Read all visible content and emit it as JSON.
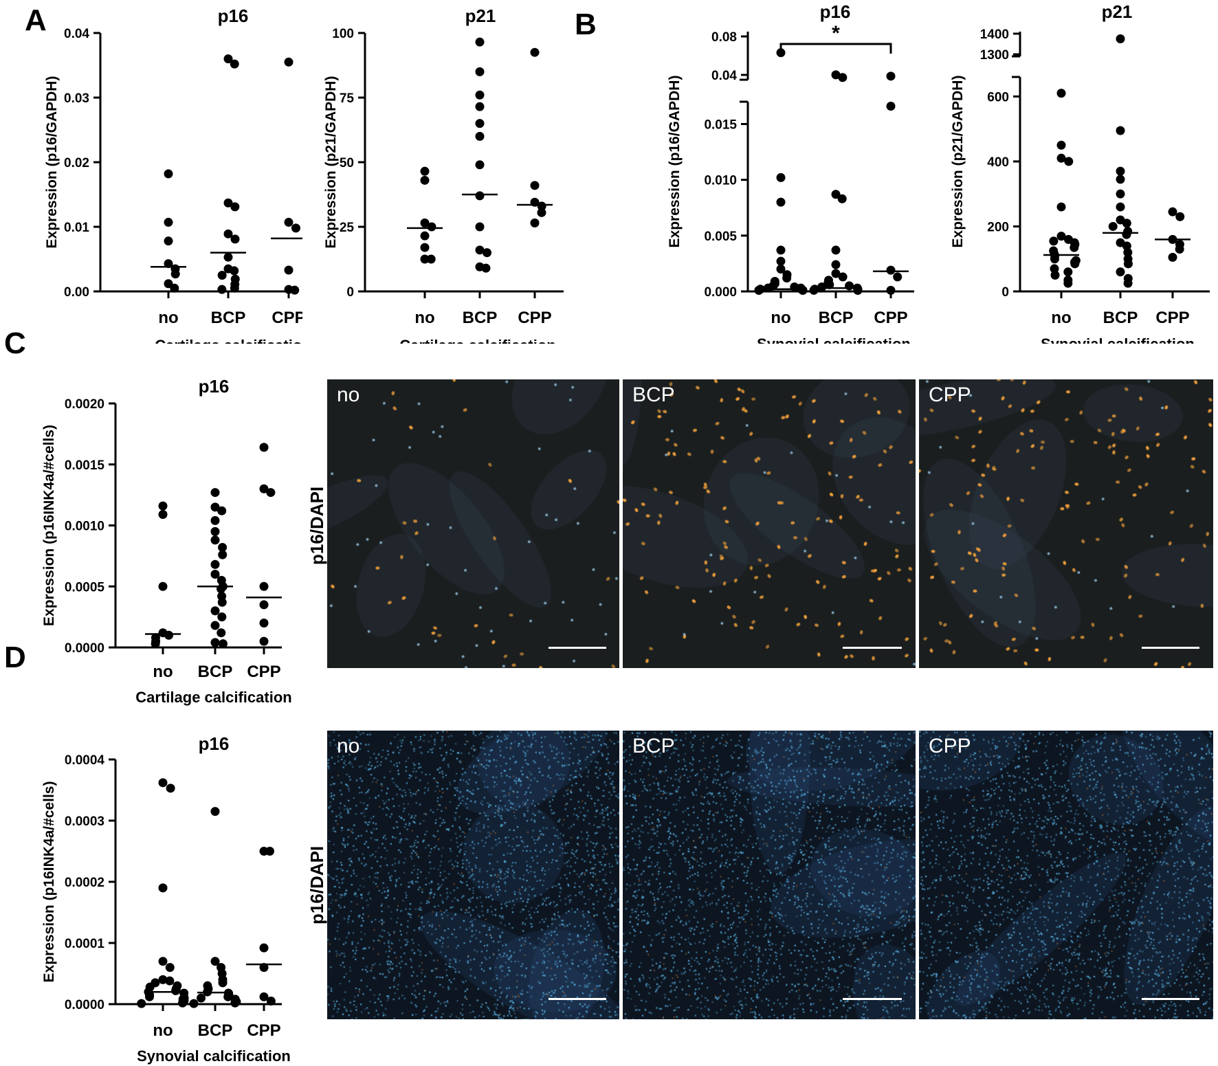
{
  "panels": {
    "A": "A",
    "B": "B",
    "C": "C",
    "D": "D"
  },
  "stain_label": "p16/DAPI",
  "colors": {
    "point": "#000000",
    "scalebar": "#ffffff",
    "label": "#ffffff"
  },
  "chart_data": [
    {
      "id": "A1",
      "type": "scatter",
      "title": "p16",
      "ylabel": "Expression (p16/GAPDH)",
      "xlabel": "Cartilage calcification",
      "categories": [
        "no",
        "BCP",
        "CPP"
      ],
      "ylim": [
        0,
        0.04
      ],
      "yticks": [
        "0.00",
        "0.01",
        "0.02",
        "0.03",
        "0.04"
      ],
      "points": [
        [
          0.0182,
          0.0107,
          0.0078,
          0.0043,
          0.0035,
          0.0027,
          0.0012,
          0.0005
        ],
        [
          0.036,
          0.0352,
          0.0137,
          0.0131,
          0.0089,
          0.0081,
          0.0053,
          0.0035,
          0.0032,
          0.0025,
          0.0019,
          0.0011,
          0.0005,
          0.0003
        ],
        [
          0.0355,
          0.0107,
          0.0098,
          0.0033,
          0.0003,
          0.0002
        ]
      ],
      "means": [
        0.0038,
        0.006,
        0.0082
      ]
    },
    {
      "id": "A2",
      "type": "scatter",
      "title": "p21",
      "ylabel": "Expression (p21/GAPDH)",
      "xlabel": "Cartilage calcification",
      "categories": [
        "no",
        "BCP",
        "CPP"
      ],
      "ylim": [
        0,
        100
      ],
      "yticks": [
        "0",
        "25",
        "50",
        "75",
        "100"
      ],
      "points": [
        [
          46.5,
          43,
          26.5,
          25,
          21.5,
          17,
          12.5,
          12.5
        ],
        [
          96.5,
          85,
          76,
          71.5,
          65,
          60,
          49,
          37,
          25,
          16,
          15,
          9.5,
          9
        ],
        [
          92.5,
          41,
          34.5,
          33,
          30.5,
          26.5
        ]
      ],
      "means": [
        24.5,
        37.5,
        33.5
      ]
    },
    {
      "id": "B1",
      "type": "scatter",
      "title": "p16",
      "ylabel": "Expression (p16/GAPDH)",
      "xlabel": "Synovial calcification",
      "categories": [
        "no",
        "BCP",
        "CPP"
      ],
      "axis_break": true,
      "ylim_upper": [
        0.035,
        0.085
      ],
      "yticks_upper": [
        "0.04",
        "0.08"
      ],
      "ylim_lower": [
        0,
        0.017
      ],
      "yticks_lower": [
        "0.000",
        "0.005",
        "0.010",
        "0.015"
      ],
      "points": [
        [
          0.0631,
          0.0102,
          0.008,
          0.0037,
          0.0027,
          0.002,
          0.0015,
          0.0012,
          0.0009,
          0.0007,
          0.0005,
          0.0004,
          0.0003,
          0.0003,
          0.0002,
          0.0002,
          0.0001,
          0.0001,
          0.0001,
          0.0001
        ],
        [
          0.0401,
          0.0373,
          0.0087,
          0.0083,
          0.0037,
          0.0024,
          0.0016,
          0.0013,
          0.001,
          0.0008,
          0.0006,
          0.0005,
          0.0004,
          0.0003,
          0.0003,
          0.0002,
          0.0002,
          0.0001,
          0.0001,
          0.0001
        ],
        [
          0.0387,
          0.0166,
          0.0019,
          0.0013,
          0.0001
        ]
      ],
      "means": [
        0.0002,
        0.0003,
        0.0018
      ],
      "significance": {
        "from": 0,
        "to": 2,
        "label": "*"
      }
    },
    {
      "id": "B2",
      "type": "scatter",
      "title": "p21",
      "ylabel": "Expression (p21/GAPDH)",
      "xlabel": "Synovial calcification",
      "categories": [
        "no",
        "BCP",
        "CPP"
      ],
      "axis_break": true,
      "ylim_upper": [
        1290,
        1410
      ],
      "yticks_upper": [
        "1300",
        "1400"
      ],
      "ylim_lower": [
        0,
        660
      ],
      "yticks_lower": [
        "0",
        "200",
        "400",
        "600"
      ],
      "points": [
        [
          610,
          450,
          410,
          400,
          260,
          170,
          160,
          155,
          150,
          145,
          135,
          125,
          115,
          110,
          100,
          95,
          90,
          85,
          70,
          60,
          50,
          35,
          25
        ],
        [
          1375,
          495,
          370,
          345,
          300,
          260,
          220,
          210,
          200,
          185,
          175,
          150,
          140,
          120,
          100,
          85,
          60,
          40,
          25
        ],
        [
          245,
          230,
          160,
          145,
          130,
          105
        ]
      ],
      "means": [
        112,
        180,
        160
      ]
    },
    {
      "id": "C1",
      "type": "scatter",
      "title": "p16",
      "ylabel": "Expression (p16INK4a/#cells)",
      "xlabel": "Cartilage calcification",
      "categories": [
        "no",
        "BCP",
        "CPP"
      ],
      "ylim": [
        0,
        0.002
      ],
      "yticks": [
        "0.0000",
        "0.0005",
        "0.0010",
        "0.0015",
        "0.0020"
      ],
      "points": [
        [
          0.00116,
          0.00109,
          0.0005,
          0.00012,
          0.0001,
          8e-05,
          5e-05,
          3e-05
        ],
        [
          0.00127,
          0.00115,
          0.00112,
          0.00104,
          0.00095,
          0.00088,
          0.00082,
          0.00076,
          0.00068,
          0.0006,
          0.00055,
          0.0005,
          0.00048,
          0.00042,
          0.00037,
          0.0003,
          0.00025,
          0.00018,
          0.00012,
          4e-05,
          3e-05
        ],
        [
          0.00164,
          0.0013,
          0.00127,
          0.0005,
          0.00035,
          0.0002,
          5e-05
        ]
      ],
      "means": [
        0.00011,
        0.0005,
        0.00041
      ]
    },
    {
      "id": "D1",
      "type": "scatter",
      "title": "p16",
      "ylabel": "Expression (p16INK4a/#cells)",
      "xlabel": "Synovial calcification",
      "categories": [
        "no",
        "BCP",
        "CPP"
      ],
      "ylim": [
        0,
        0.0004
      ],
      "yticks": [
        "0.0000",
        "0.0001",
        "0.0002",
        "0.0003",
        "0.0004"
      ],
      "points": [
        [
          0.000362,
          0.000353,
          0.00019,
          7e-05,
          6e-05,
          4e-05,
          3.8e-05,
          3.5e-05,
          3e-05,
          2.8e-05,
          2.5e-05,
          2.2e-05,
          2e-05,
          1.8e-05,
          1.5e-05,
          1.2e-05,
          1e-05,
          8e-06,
          6e-06,
          4e-06,
          2e-06,
          1e-06
        ],
        [
          0.000315,
          7e-05,
          6e-05,
          5e-05,
          4e-05,
          3.5e-05,
          3e-05,
          2.5e-05,
          2e-05,
          1.8e-05,
          1.5e-05,
          1.2e-05,
          1e-05,
          8e-06,
          6e-06,
          4e-06,
          2e-06,
          1e-06
        ],
        [
          0.00025,
          0.00025,
          9.2e-05,
          6e-05,
          1.2e-05,
          5e-06
        ]
      ],
      "means": [
        2e-05,
        1.9e-05,
        6.5e-05
      ]
    }
  ],
  "micrographs": [
    {
      "id": "C-no",
      "label": "no"
    },
    {
      "id": "C-BCP",
      "label": "BCP"
    },
    {
      "id": "C-CPP",
      "label": "CPP"
    },
    {
      "id": "D-no",
      "label": "no"
    },
    {
      "id": "D-BCP",
      "label": "BCP"
    },
    {
      "id": "D-CPP",
      "label": "CPP"
    }
  ]
}
